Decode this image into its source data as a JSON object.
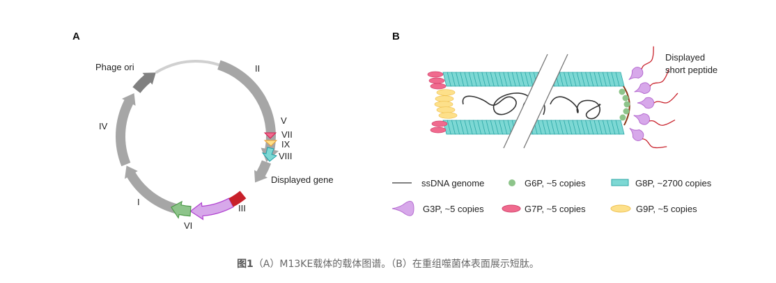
{
  "panel_a": {
    "label": "A",
    "genes": {
      "phage_ori": "Phage ori",
      "ii": "II",
      "iv": "IV",
      "v": "V",
      "vii": "VII",
      "ix": "IX",
      "viii": "VIII",
      "displayed_gene": "Displayed gene",
      "iii": "III",
      "i": "I",
      "vi": "VI"
    }
  },
  "panel_b": {
    "label": "B",
    "peptide_label_line1": "Displayed",
    "peptide_label_line2": "short peptide",
    "legend": {
      "ssdna": "ssDNA genome",
      "g6p": "G6P, ~5 copies",
      "g8p": "G8P, ~2700 copies",
      "g3p": "G3P, ~5 copies",
      "g7p": "G7P, ~5 copies",
      "g9p": "G9P, ~5 copies"
    }
  },
  "colors": {
    "gray": "#a6a6a6",
    "dark_gray": "#808080",
    "light_gray": "#d0d0d0",
    "g7p_pink": "#f06a8e",
    "g9p_yellow": "#fde08a",
    "g8p_teal": "#7dd8d4",
    "displayed_red": "#c8202a",
    "g3p_purple": "#d7a8ea",
    "g6p_green": "#8dc48a"
  },
  "caption": {
    "figure_no": "图1",
    "text": "（A）M13KE载体的载体图谱。（B）在重组噬菌体表面展示短肽。"
  }
}
